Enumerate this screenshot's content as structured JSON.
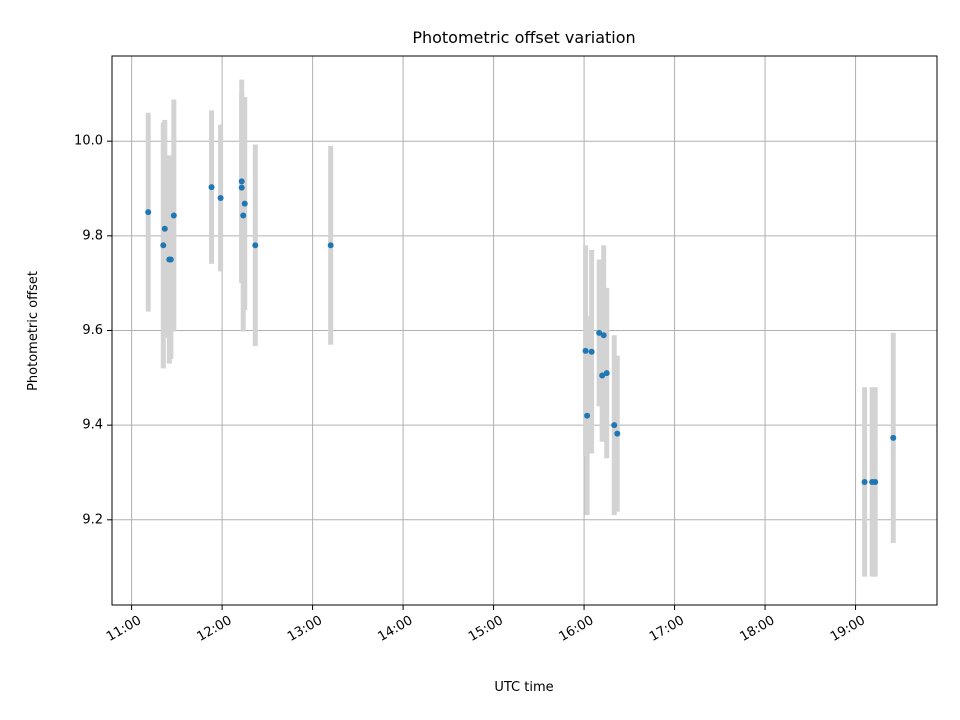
{
  "chart_data": {
    "type": "scatter",
    "title": "Photometric offset variation",
    "xlabel": "UTC time",
    "ylabel": "Photometric offset",
    "xlim": [
      "10:47",
      "19:54"
    ],
    "ylim": [
      9.02,
      10.18
    ],
    "xticks": [
      "11:00",
      "12:00",
      "13:00",
      "14:00",
      "15:00",
      "16:00",
      "17:00",
      "18:00",
      "19:00"
    ],
    "yticks": [
      9.2,
      9.4,
      9.6,
      9.8,
      10.0
    ],
    "ytick_labels": [
      "9.2",
      "9.4",
      "9.6",
      "9.8",
      "10.0"
    ],
    "grid": true,
    "errorbar_color": "#d3d3d3",
    "marker_color": "#1f77b4",
    "series": [
      {
        "points": [
          {
            "x": "11:11",
            "y": 9.85,
            "yerr": 0.21
          },
          {
            "x": "11:21",
            "y": 9.78,
            "yerr": 0.26
          },
          {
            "x": "11:22",
            "y": 9.815,
            "yerr": 0.23
          },
          {
            "x": "11:25",
            "y": 9.75,
            "yerr": 0.22
          },
          {
            "x": "11:26",
            "y": 9.75,
            "yerr": 0.21
          },
          {
            "x": "11:28",
            "y": 9.843,
            "yerr": 0.245
          },
          {
            "x": "11:53",
            "y": 9.903,
            "yerr": 0.162
          },
          {
            "x": "11:59",
            "y": 9.88,
            "yerr": 0.155
          },
          {
            "x": "12:13",
            "y": 9.915,
            "yerr": 0.215
          },
          {
            "x": "12:13",
            "y": 9.902,
            "yerr": 0.2
          },
          {
            "x": "12:14",
            "y": 9.843,
            "yerr": 0.245
          },
          {
            "x": "12:15",
            "y": 9.868,
            "yerr": 0.225
          },
          {
            "x": "12:22",
            "y": 9.78,
            "yerr": 0.213
          },
          {
            "x": "13:12",
            "y": 9.78,
            "yerr": 0.21
          },
          {
            "x": "16:01",
            "y": 9.557,
            "yerr": 0.223
          },
          {
            "x": "16:02",
            "y": 9.42,
            "yerr": 0.21
          },
          {
            "x": "16:05",
            "y": 9.555,
            "yerr": 0.215
          },
          {
            "x": "16:10",
            "y": 9.595,
            "yerr": 0.155
          },
          {
            "x": "16:12",
            "y": 9.505,
            "yerr": 0.14
          },
          {
            "x": "16:13",
            "y": 9.59,
            "yerr": 0.19
          },
          {
            "x": "16:15",
            "y": 9.51,
            "yerr": 0.18
          },
          {
            "x": "16:20",
            "y": 9.4,
            "yerr": 0.19
          },
          {
            "x": "16:22",
            "y": 9.382,
            "yerr": 0.165
          },
          {
            "x": "19:06",
            "y": 9.28,
            "yerr": 0.2
          },
          {
            "x": "19:11",
            "y": 9.28,
            "yerr": 0.2
          },
          {
            "x": "19:13",
            "y": 9.28,
            "yerr": 0.2
          },
          {
            "x": "19:25",
            "y": 9.373,
            "yerr": 0.222
          }
        ]
      }
    ]
  }
}
